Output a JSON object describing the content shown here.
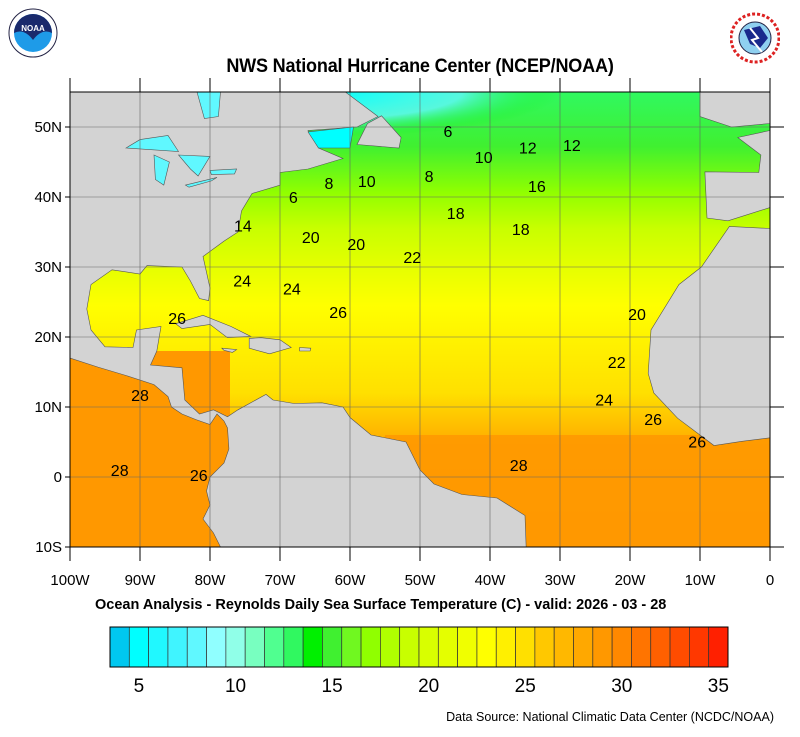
{
  "header": {
    "title": "NWS National Hurricane Center (NCEP/NOAA)",
    "left_logo": "NOAA",
    "right_logo": "NATIONAL WEATHER SERVICE"
  },
  "map": {
    "lon_range": [
      -100,
      0
    ],
    "lat_range": [
      -10,
      55
    ],
    "lon_ticks": [
      {
        "value": -100,
        "label": "100W"
      },
      {
        "value": -90,
        "label": "90W"
      },
      {
        "value": -80,
        "label": "80W"
      },
      {
        "value": -70,
        "label": "70W"
      },
      {
        "value": -60,
        "label": "60W"
      },
      {
        "value": -50,
        "label": "50W"
      },
      {
        "value": -40,
        "label": "40W"
      },
      {
        "value": -30,
        "label": "30W"
      },
      {
        "value": -20,
        "label": "20W"
      },
      {
        "value": -10,
        "label": "10W"
      },
      {
        "value": 0,
        "label": "0"
      }
    ],
    "lat_ticks": [
      {
        "value": 50,
        "label": "50N"
      },
      {
        "value": 40,
        "label": "40N"
      },
      {
        "value": 30,
        "label": "30N"
      },
      {
        "value": 20,
        "label": "20N"
      },
      {
        "value": 10,
        "label": "10N"
      },
      {
        "value": 0,
        "label": "0"
      },
      {
        "value": -10,
        "label": "10S"
      }
    ],
    "grid": true,
    "land_color": "#d3d3d3",
    "contour_labels": [
      {
        "text": "6",
        "lon": -46,
        "lat": 49.4
      },
      {
        "text": "10",
        "lon": -40.9,
        "lat": 45.7
      },
      {
        "text": "12",
        "lon": -34.6,
        "lat": 47.1
      },
      {
        "text": "12",
        "lon": -28.3,
        "lat": 47.4
      },
      {
        "text": "8",
        "lon": -48.7,
        "lat": 43
      },
      {
        "text": "16",
        "lon": -33.3,
        "lat": 41.6
      },
      {
        "text": "6",
        "lon": -68.1,
        "lat": 40
      },
      {
        "text": "8",
        "lon": -63,
        "lat": 42
      },
      {
        "text": "10",
        "lon": -57.6,
        "lat": 42.3
      },
      {
        "text": "18",
        "lon": -44.9,
        "lat": 37.7
      },
      {
        "text": "18",
        "lon": -35.6,
        "lat": 35.4
      },
      {
        "text": "14",
        "lon": -75.3,
        "lat": 35.9
      },
      {
        "text": "20",
        "lon": -65.6,
        "lat": 34.3
      },
      {
        "text": "20",
        "lon": -59.1,
        "lat": 33.3
      },
      {
        "text": "22",
        "lon": -51.1,
        "lat": 31.4
      },
      {
        "text": "24",
        "lon": -75.4,
        "lat": 28.1
      },
      {
        "text": "24",
        "lon": -68.3,
        "lat": 26.9
      },
      {
        "text": "26",
        "lon": -84.7,
        "lat": 22.7
      },
      {
        "text": "26",
        "lon": -61.7,
        "lat": 23.6
      },
      {
        "text": "20",
        "lon": -19,
        "lat": 23.3
      },
      {
        "text": "22",
        "lon": -21.9,
        "lat": 16.4
      },
      {
        "text": "24",
        "lon": -23.7,
        "lat": 11.1
      },
      {
        "text": "26",
        "lon": -16.7,
        "lat": 8.3
      },
      {
        "text": "28",
        "lon": -90,
        "lat": 11.7
      },
      {
        "text": "26",
        "lon": -10.4,
        "lat": 5.1
      },
      {
        "text": "28",
        "lon": -35.9,
        "lat": 1.7
      },
      {
        "text": "28",
        "lon": -92.9,
        "lat": 1
      },
      {
        "text": "26",
        "lon": -81.6,
        "lat": 0.3
      }
    ]
  },
  "caption": "Ocean Analysis - Reynolds Daily Sea Surface Temperature (C) - valid: 2026 - 03 - 28",
  "colorbar": {
    "min": 4,
    "max": 36,
    "colors": [
      "#00c8f0",
      "#00ffff",
      "#20f8ff",
      "#40f4ff",
      "#60f8ff",
      "#90ffff",
      "#90ffe8",
      "#78ffc0",
      "#50ff90",
      "#30f860",
      "#00f000",
      "#40f030",
      "#70f820",
      "#90ff00",
      "#b0ff00",
      "#c8ff00",
      "#d8ff00",
      "#e4ff00",
      "#f0ff00",
      "#ffff00",
      "#fff000",
      "#ffe000",
      "#ffc800",
      "#ffb800",
      "#ffa800",
      "#ff9800",
      "#ff8800",
      "#ff7400",
      "#ff6000",
      "#ff4c00",
      "#ff3800",
      "#ff2000"
    ],
    "labels": [
      {
        "value": 5,
        "label": "5"
      },
      {
        "value": 10,
        "label": "10"
      },
      {
        "value": 15,
        "label": "15"
      },
      {
        "value": 20,
        "label": "20"
      },
      {
        "value": 25,
        "label": "25"
      },
      {
        "value": 30,
        "label": "30"
      },
      {
        "value": 35,
        "label": "35"
      }
    ]
  },
  "footer": {
    "source": "Data Source: National Climatic Data Center (NCDC/NOAA)"
  }
}
